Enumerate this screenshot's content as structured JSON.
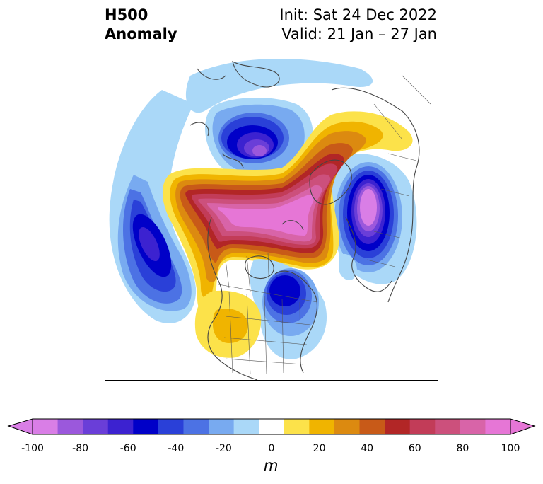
{
  "title": {
    "left_line1": "H500",
    "left_line2": "Anomaly",
    "init": "Init: Sat 24 Dec 2022",
    "valid": "Valid: 21 Jan – 27 Jan"
  },
  "colorbar": {
    "unit": "m",
    "levels": [
      -100,
      -90,
      -80,
      -70,
      -60,
      -50,
      -40,
      -30,
      -20,
      -10,
      10,
      20,
      30,
      40,
      50,
      60,
      70,
      80,
      90,
      100
    ],
    "colors": [
      "#d97ee6",
      "#9b58dc",
      "#6a3ed8",
      "#3c22d0",
      "#0000c8",
      "#2a40d8",
      "#4c72e4",
      "#78aaf0",
      "#aad8f8",
      "#ffffff",
      "#fce24a",
      "#f0b400",
      "#dc8a10",
      "#c85a18",
      "#b22626",
      "#c23c58",
      "#cc507c",
      "#d864a8",
      "#e676d6"
    ],
    "tick_labels": [
      "-100",
      "-80",
      "-60",
      "-40",
      "-20",
      "0",
      "20",
      "40",
      "60",
      "80",
      "100"
    ]
  }
}
